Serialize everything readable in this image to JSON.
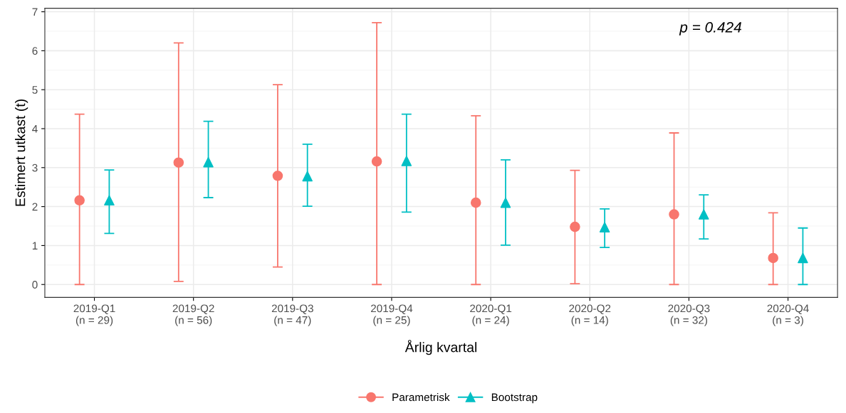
{
  "chart_data": {
    "type": "scatter",
    "xlabel": "Årlig kvartal",
    "ylabel": "Estimert utkast (t)",
    "categories": [
      "2019-Q1\n(n = 29)",
      "2019-Q2\n(n = 56)",
      "2019-Q3\n(n = 47)",
      "2019-Q4\n(n = 25)",
      "2020-Q1\n(n = 24)",
      "2020-Q2\n(n = 14)",
      "2020-Q3\n(n = 32)",
      "2020-Q4\n(n = 3)"
    ],
    "series": [
      {
        "name": "Parametrisk",
        "color": "#f8766d",
        "marker": "circle",
        "values": [
          2.16,
          3.13,
          2.79,
          3.16,
          2.1,
          1.48,
          1.8,
          0.68
        ],
        "errors": [
          [
            0,
            4.37
          ],
          [
            0.08,
            6.2
          ],
          [
            0.45,
            5.13
          ],
          [
            0,
            6.72
          ],
          [
            0,
            4.33
          ],
          [
            0.02,
            2.93
          ],
          [
            0,
            3.89
          ],
          [
            0,
            1.84
          ]
        ]
      },
      {
        "name": "Bootstrap",
        "color": "#00bfc4",
        "marker": "triangle",
        "values": [
          2.16,
          3.14,
          2.78,
          3.17,
          2.1,
          1.47,
          1.8,
          0.68
        ],
        "errors": [
          [
            1.31,
            2.94
          ],
          [
            2.23,
            4.19
          ],
          [
            2.01,
            3.6
          ],
          [
            1.86,
            4.37
          ],
          [
            1.01,
            3.2
          ],
          [
            0.95,
            1.94
          ],
          [
            1.17,
            2.3
          ],
          [
            0,
            1.45
          ]
        ]
      }
    ],
    "ylim": [
      -0.33,
      7.09
    ],
    "yticks": [
      0,
      1,
      2,
      3,
      4,
      5,
      6,
      7
    ],
    "grid": true,
    "legend": "bottom",
    "annotations": [
      "p = 0.424"
    ]
  }
}
